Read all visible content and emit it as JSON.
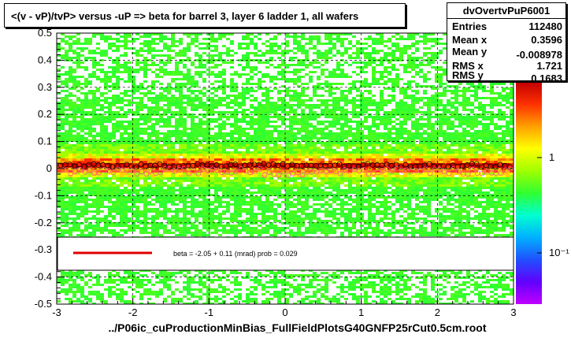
{
  "chart_data": {
    "type": "heatmap",
    "title": "<(v - vP)/tvP> versus  -uP => beta for barrel 3, layer 6 ladder 1, all wafers",
    "xlabel": "../P06ic_cuProductionMinBias_FullFieldPlotsG40GNFP25rCut0.5cm.root",
    "ylabel": "",
    "xlim": [
      -3,
      3
    ],
    "ylim": [
      -0.5,
      0.5
    ],
    "x_ticks": [
      "-3",
      "-2",
      "-1",
      "0",
      "1",
      "2",
      "3"
    ],
    "y_ticks": [
      "-0.5",
      "-0.4",
      "-0.3",
      "-0.2",
      "-0.1",
      "0",
      "0.1",
      "0.2",
      "0.3",
      "0.4",
      "0.5"
    ],
    "z_ticks": [
      "1",
      "10⁻¹"
    ],
    "grid": true,
    "profile_mean_y": 0.012,
    "stats": {
      "name": "dvOvertvPuP6001",
      "rows": [
        {
          "label": "Entries",
          "value": "112480"
        },
        {
          "label": "Mean x",
          "value": "0.3596"
        },
        {
          "label": "Mean y",
          "value": "-0.008978"
        },
        {
          "label": "RMS x",
          "value": "1.721"
        },
        {
          "label": "RMS y",
          "value": "0.1683"
        }
      ]
    },
    "fit_legend": {
      "text": "beta =    -2.05 +  0.11 (mrad) prob = 0.029",
      "line_color": "#e00000"
    }
  },
  "colors": {
    "palette_low": "#20ff40",
    "palette_mid": "#ffee00",
    "palette_high": "#c80000",
    "profile_black": "#000000",
    "profile_pink": "#ff5090"
  }
}
